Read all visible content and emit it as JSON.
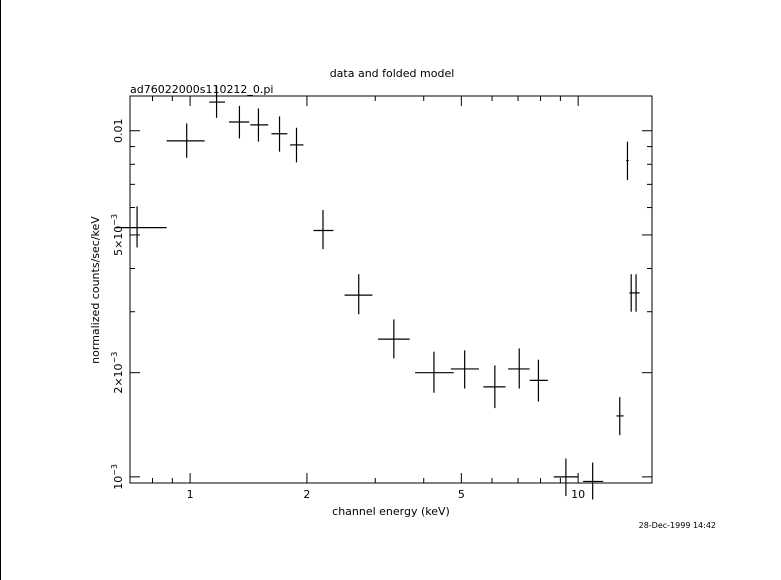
{
  "chart_data": {
    "type": "scatter",
    "title": "data and folded model",
    "subtitle": "ad76022000s110212_0.pi",
    "xlabel": "channel energy (keV)",
    "ylabel": "normalized counts/sec/keV",
    "timestamp": "28-Dec-1999 14:42",
    "x_scale": "log",
    "y_scale": "log",
    "xlim": [
      0.7,
      15.5
    ],
    "ylim": [
      0.00096,
      0.0126
    ],
    "grid": false,
    "x_ticks": [
      {
        "value": 1,
        "label": "1"
      },
      {
        "value": 2,
        "label": "2"
      },
      {
        "value": 5,
        "label": "5"
      },
      {
        "value": 10,
        "label": "10"
      }
    ],
    "y_ticks": [
      {
        "value": 0.001,
        "base": "10",
        "exp": "−3",
        "prefix": ""
      },
      {
        "value": 0.002,
        "base": "10",
        "exp": "−3",
        "prefix": "2×"
      },
      {
        "value": 0.005,
        "base": "10",
        "exp": "−3",
        "prefix": "5×"
      },
      {
        "value": 0.01,
        "base": "0.01",
        "exp": "",
        "prefix": ""
      }
    ],
    "series": [
      {
        "points": [
          {
            "x": 0.73,
            "xlo": 0.64,
            "xhi": 0.87,
            "y": 0.00525,
            "ylo": 0.0046,
            "yhi": 0.00605
          },
          {
            "x": 0.98,
            "xlo": 0.87,
            "xhi": 1.09,
            "y": 0.00935,
            "ylo": 0.00835,
            "yhi": 0.0105
          },
          {
            "x": 1.17,
            "xlo": 1.12,
            "xhi": 1.23,
            "y": 0.0121,
            "ylo": 0.0109,
            "yhi": 0.0135
          },
          {
            "x": 1.34,
            "xlo": 1.26,
            "xhi": 1.42,
            "y": 0.0106,
            "ylo": 0.0095,
            "yhi": 0.0118
          },
          {
            "x": 1.5,
            "xlo": 1.43,
            "xhi": 1.59,
            "y": 0.0104,
            "ylo": 0.0093,
            "yhi": 0.0116
          },
          {
            "x": 1.7,
            "xlo": 1.62,
            "xhi": 1.78,
            "y": 0.0098,
            "ylo": 0.0087,
            "yhi": 0.011
          },
          {
            "x": 1.88,
            "xlo": 1.81,
            "xhi": 1.96,
            "y": 0.0091,
            "ylo": 0.0081,
            "yhi": 0.0102
          },
          {
            "x": 2.2,
            "xlo": 2.08,
            "xhi": 2.34,
            "y": 0.00515,
            "ylo": 0.00455,
            "yhi": 0.0059
          },
          {
            "x": 2.72,
            "xlo": 2.5,
            "xhi": 2.95,
            "y": 0.00335,
            "ylo": 0.00295,
            "yhi": 0.00385
          },
          {
            "x": 3.35,
            "xlo": 3.05,
            "xhi": 3.68,
            "y": 0.0025,
            "ylo": 0.0022,
            "yhi": 0.00285
          },
          {
            "x": 4.25,
            "xlo": 3.8,
            "xhi": 4.78,
            "y": 0.002,
            "ylo": 0.00175,
            "yhi": 0.0023
          },
          {
            "x": 5.1,
            "xlo": 4.7,
            "xhi": 5.55,
            "y": 0.00205,
            "ylo": 0.0018,
            "yhi": 0.00232
          },
          {
            "x": 6.1,
            "xlo": 5.7,
            "xhi": 6.5,
            "y": 0.00182,
            "ylo": 0.00158,
            "yhi": 0.0021
          },
          {
            "x": 7.05,
            "xlo": 6.6,
            "xhi": 7.5,
            "y": 0.00205,
            "ylo": 0.0018,
            "yhi": 0.00235
          },
          {
            "x": 7.9,
            "xlo": 7.5,
            "xhi": 8.35,
            "y": 0.0019,
            "ylo": 0.00165,
            "yhi": 0.00218
          },
          {
            "x": 9.3,
            "xlo": 8.65,
            "xhi": 10.0,
            "y": 0.001,
            "ylo": 0.00088,
            "yhi": 0.00113
          },
          {
            "x": 10.9,
            "xlo": 10.3,
            "xhi": 11.6,
            "y": 0.00097,
            "ylo": 0.00086,
            "yhi": 0.0011
          },
          {
            "x": 12.8,
            "xlo": 12.55,
            "xhi": 13.1,
            "y": 0.0015,
            "ylo": 0.00132,
            "yhi": 0.0017
          },
          {
            "x": 13.4,
            "xlo": 13.3,
            "xhi": 13.5,
            "y": 0.0082,
            "ylo": 0.0072,
            "yhi": 0.0093
          },
          {
            "x": 13.7,
            "xlo": 13.55,
            "xhi": 13.85,
            "y": 0.0034,
            "ylo": 0.003,
            "yhi": 0.00385
          },
          {
            "x": 14.1,
            "xlo": 13.85,
            "xhi": 14.4,
            "y": 0.0034,
            "ylo": 0.003,
            "yhi": 0.00385
          }
        ]
      }
    ]
  }
}
